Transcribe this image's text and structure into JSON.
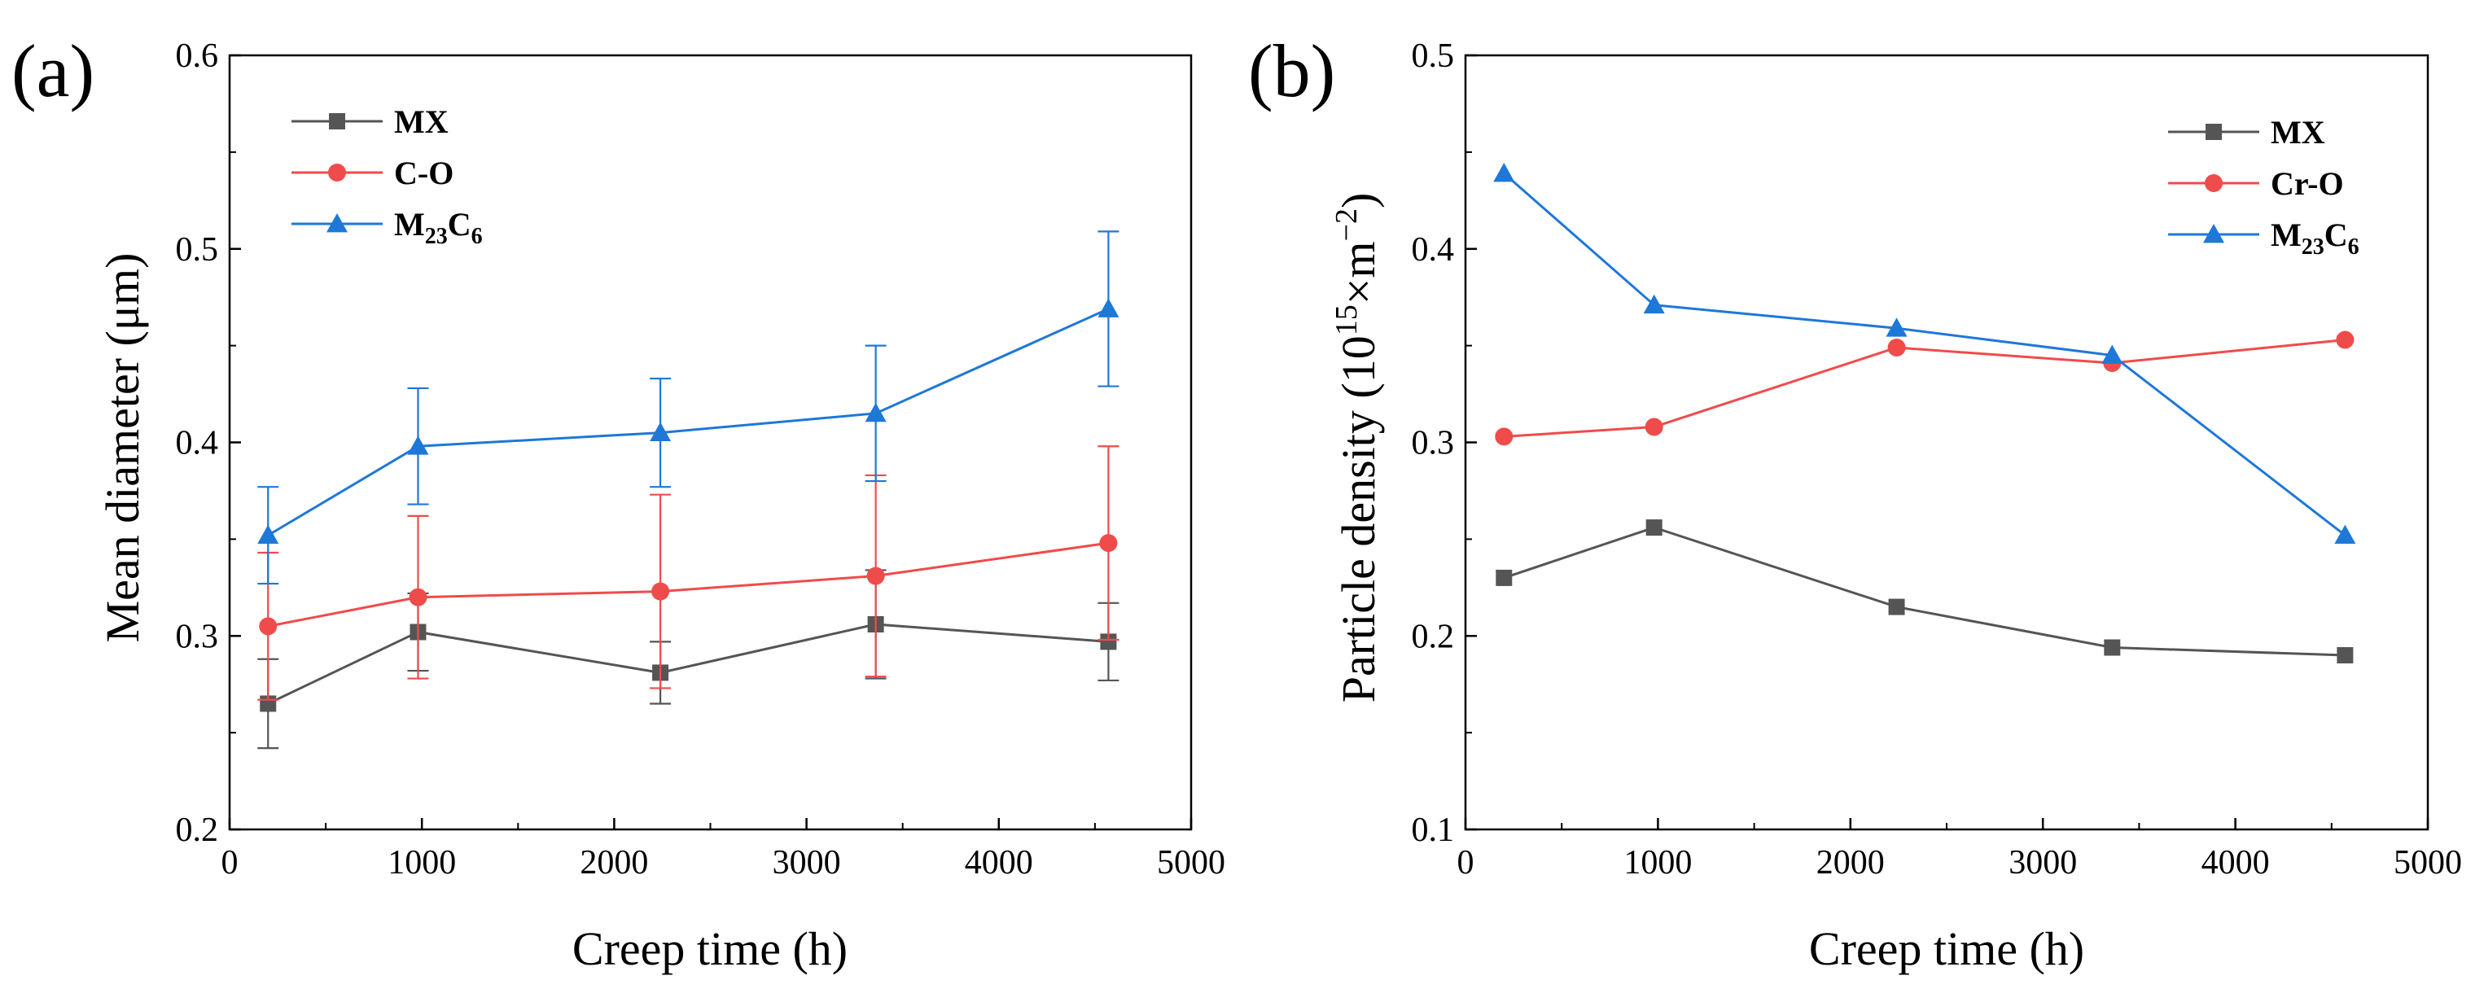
{
  "chart_data": [
    {
      "type": "line",
      "panel_label": "(a)",
      "xlabel": "Creep time (h)",
      "ylabel": "Mean diameter (μm)",
      "xlim": [
        0,
        5000
      ],
      "ylim": [
        0.2,
        0.6
      ],
      "x_ticks": [
        "0",
        "1000",
        "2000",
        "3000",
        "4000",
        "5000"
      ],
      "y_ticks": [
        "0.2",
        "0.3",
        "0.4",
        "0.5",
        "0.6"
      ],
      "grid": false,
      "legend_position": "top-left",
      "series": [
        {
          "name": "MX",
          "legend_main": "MX",
          "legend_sub1": "",
          "legend_mid": "",
          "legend_sub2": "",
          "color": "#555555",
          "marker": "square",
          "x": [
            200,
            980,
            2240,
            3360,
            4570
          ],
          "y": [
            0.265,
            0.302,
            0.281,
            0.306,
            0.297
          ],
          "err": [
            0.023,
            0.02,
            0.016,
            0.028,
            0.02
          ]
        },
        {
          "name": "C-O",
          "legend_main": "C-O",
          "legend_sub1": "",
          "legend_mid": "",
          "legend_sub2": "",
          "color": "#f04b4b",
          "marker": "circle",
          "x": [
            200,
            980,
            2240,
            3360,
            4570
          ],
          "y": [
            0.305,
            0.32,
            0.323,
            0.331,
            0.348
          ],
          "err": [
            0.038,
            0.042,
            0.05,
            0.052,
            0.05
          ]
        },
        {
          "name": "M23C6",
          "legend_main": "M",
          "legend_sub1": "23",
          "legend_mid": "C",
          "legend_sub2": "6",
          "color": "#1e78d8",
          "marker": "triangle",
          "x": [
            200,
            980,
            2240,
            3360,
            4570
          ],
          "y": [
            0.352,
            0.398,
            0.405,
            0.415,
            0.469
          ],
          "err": [
            0.025,
            0.03,
            0.028,
            0.035,
            0.04
          ]
        }
      ]
    },
    {
      "type": "line",
      "panel_label": "(b)",
      "xlabel": "Creep time (h)",
      "ylabel_main": "Particle density (10",
      "ylabel_sup1": "15",
      "ylabel_mid": "×m",
      "ylabel_sup2": "−2",
      "ylabel_end": ")",
      "xlim": [
        0,
        5000
      ],
      "ylim": [
        0.1,
        0.5
      ],
      "x_ticks": [
        "0",
        "1000",
        "2000",
        "3000",
        "4000",
        "5000"
      ],
      "y_ticks": [
        "0.1",
        "0.2",
        "0.3",
        "0.4",
        "0.5"
      ],
      "grid": false,
      "legend_position": "top-right",
      "series": [
        {
          "name": "MX",
          "legend_main": "MX",
          "legend_sub1": "",
          "legend_mid": "",
          "legend_sub2": "",
          "color": "#555555",
          "marker": "square",
          "x": [
            200,
            980,
            2240,
            3360,
            4570
          ],
          "y": [
            0.23,
            0.256,
            0.215,
            0.194,
            0.19
          ]
        },
        {
          "name": "Cr-O",
          "legend_main": "Cr-O",
          "legend_sub1": "",
          "legend_mid": "",
          "legend_sub2": "",
          "color": "#f04b4b",
          "marker": "circle",
          "x": [
            200,
            980,
            2240,
            3360,
            4570
          ],
          "y": [
            0.303,
            0.308,
            0.349,
            0.341,
            0.353
          ]
        },
        {
          "name": "M23C6",
          "legend_main": "M",
          "legend_sub1": "23",
          "legend_mid": "C",
          "legend_sub2": "6",
          "color": "#1e78d8",
          "marker": "triangle",
          "x": [
            200,
            980,
            2240,
            3360,
            4570
          ],
          "y": [
            0.439,
            0.371,
            0.359,
            0.345,
            0.252
          ]
        }
      ]
    }
  ]
}
